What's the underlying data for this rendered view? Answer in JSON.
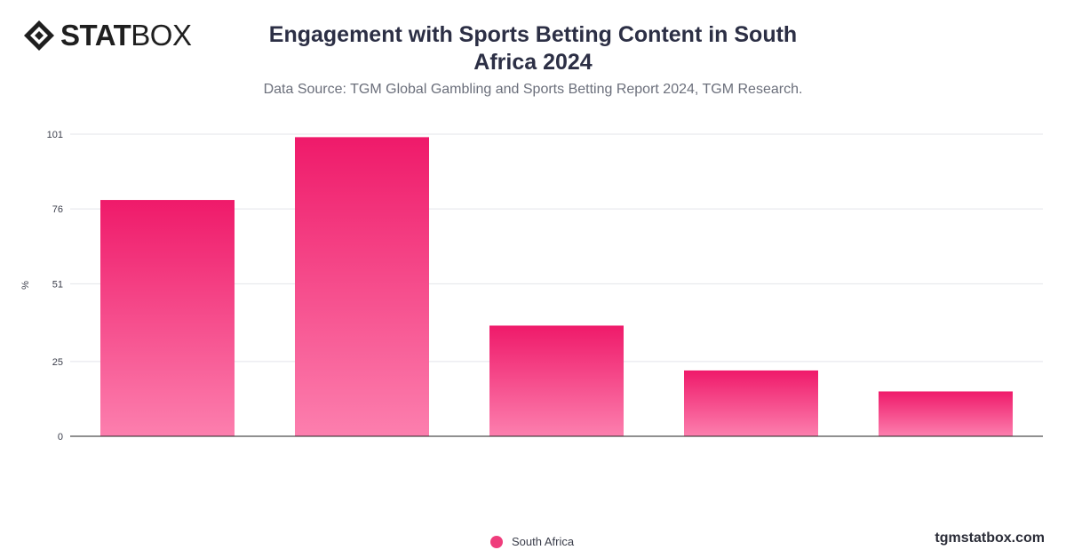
{
  "brand": {
    "name_bold": "STAT",
    "name_light": "BOX",
    "website": "tgmstatbox.com"
  },
  "header": {
    "title": "Engagement with Sports Betting Content in South Africa 2024",
    "subtitle": "Data Source: TGM Global Gambling and Sports Betting Report 2024, TGM Research."
  },
  "legend": {
    "label": "South Africa",
    "color": "#ef3d7c"
  },
  "chart_data": {
    "type": "bar",
    "title": "Engagement with Sports Betting Content in South Africa 2024",
    "subtitle": "Data Source: TGM Global Gambling and Sports Betting Report 2024, TGM Research.",
    "ylabel": "%",
    "xlabel": "",
    "categories": [
      "",
      "",
      "",
      "",
      ""
    ],
    "yticks": [
      0,
      25,
      51,
      76,
      101
    ],
    "ylim": [
      0,
      101
    ],
    "grid": true,
    "legend_position": "bottom",
    "series": [
      {
        "name": "South Africa",
        "values": [
          79,
          100,
          37,
          22,
          15
        ]
      }
    ],
    "colors": {
      "bar_top": "#ef1a6a",
      "bar_bottom": "#fc7fae",
      "grid": "#e3e4ea",
      "axis": "#222222"
    }
  }
}
